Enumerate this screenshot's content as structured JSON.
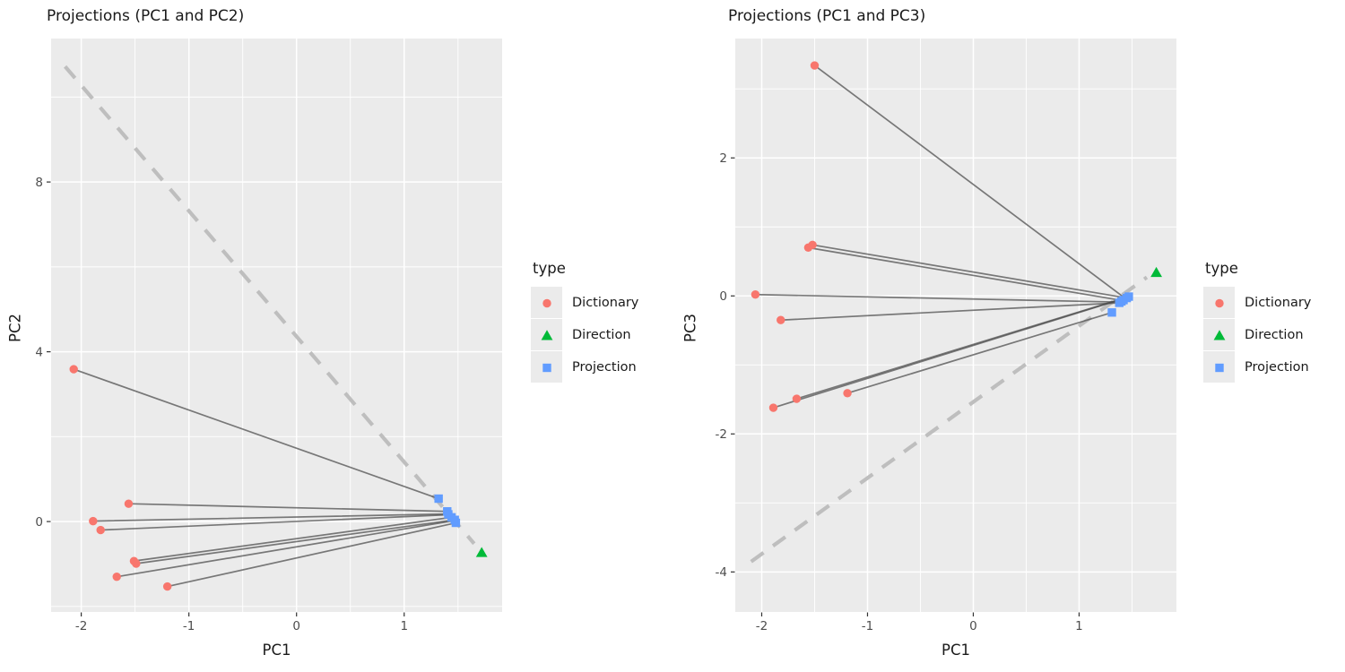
{
  "colors": {
    "dictionary": "#F8766D",
    "direction": "#00BA38",
    "projection": "#619CFF",
    "panel_bg": "#EBEBEB",
    "grid": "#FFFFFF",
    "dashed_line": "#BEBEBE",
    "segment": "#4A4A4A",
    "tick_text": "#4D4D4D",
    "tick_mark": "#333333",
    "title_text": "#1A1A1A"
  },
  "legend": {
    "title": "type",
    "items": [
      {
        "label": "Dictionary",
        "marker": "circle",
        "color": "#F8766D"
      },
      {
        "label": "Direction",
        "marker": "triangle",
        "color": "#00BA38"
      },
      {
        "label": "Projection",
        "marker": "square",
        "color": "#619CFF"
      }
    ]
  },
  "chart_data": [
    {
      "type": "scatter",
      "title": "Projections (PC1 and PC2)",
      "xlabel": "PC1",
      "ylabel": "PC2",
      "xlim": [
        -2.28,
        1.91
      ],
      "ylim": [
        -2.13,
        11.38
      ],
      "xticks": [
        -2,
        -1,
        0,
        1
      ],
      "yticks": [
        0,
        4,
        8
      ],
      "x_minor": [
        -1.5,
        -0.5,
        0.5,
        1.5
      ],
      "y_minor": [
        -2,
        2,
        6,
        10
      ],
      "grid": true,
      "legend_position": "right",
      "direction_axis": {
        "x1": -2.15,
        "y1": 10.72,
        "x2": 1.65,
        "y2": -0.52,
        "style": "dashed"
      },
      "series": [
        {
          "name": "Dictionary",
          "marker": "circle",
          "color": "#F8766D",
          "points": [
            [
              -2.07,
              3.59
            ],
            [
              -1.56,
              0.42
            ],
            [
              -1.89,
              0.01
            ],
            [
              -1.82,
              -0.2
            ],
            [
              -1.51,
              -0.93
            ],
            [
              -1.49,
              -0.99
            ],
            [
              -1.67,
              -1.3
            ],
            [
              -1.2,
              -1.53
            ]
          ]
        },
        {
          "name": "Direction",
          "marker": "triangle",
          "color": "#00BA38",
          "points": [
            [
              1.72,
              -0.73
            ]
          ]
        },
        {
          "name": "Projection",
          "marker": "square",
          "color": "#619CFF",
          "points": [
            [
              1.32,
              0.54
            ],
            [
              1.4,
              0.24
            ],
            [
              1.41,
              0.17
            ],
            [
              1.44,
              0.1
            ],
            [
              1.47,
              0.04
            ],
            [
              1.48,
              -0.03
            ]
          ]
        }
      ],
      "segments": [
        [
          -2.07,
          3.59,
          1.32,
          0.54
        ],
        [
          -1.56,
          0.42,
          1.4,
          0.24
        ],
        [
          -1.89,
          0.01,
          1.41,
          0.18
        ],
        [
          -1.82,
          -0.2,
          1.41,
          0.16
        ],
        [
          -1.51,
          -0.93,
          1.44,
          0.1
        ],
        [
          -1.49,
          -0.99,
          1.47,
          0.04
        ],
        [
          -1.67,
          -1.3,
          1.46,
          0.02
        ],
        [
          -1.2,
          -1.53,
          1.48,
          -0.03
        ]
      ]
    },
    {
      "type": "scatter",
      "title": "Projections (PC1 and PC3)",
      "xlabel": "PC1",
      "ylabel": "PC3",
      "xlim": [
        -2.25,
        1.92
      ],
      "ylim": [
        -4.58,
        3.73
      ],
      "xticks": [
        -2,
        -1,
        0,
        1
      ],
      "yticks": [
        -4,
        -2,
        0,
        2
      ],
      "x_minor": [
        -1.5,
        -0.5,
        0.5,
        1.5
      ],
      "y_minor": [
        -3,
        -1,
        1,
        3
      ],
      "grid": true,
      "legend_position": "right",
      "direction_axis": {
        "x1": -2.1,
        "y1": -3.85,
        "x2": 1.64,
        "y2": 0.27,
        "style": "dashed"
      },
      "series": [
        {
          "name": "Dictionary",
          "marker": "circle",
          "color": "#F8766D",
          "points": [
            [
              -1.5,
              3.34
            ],
            [
              -1.52,
              0.74
            ],
            [
              -1.56,
              0.7
            ],
            [
              -2.06,
              0.02
            ],
            [
              -1.82,
              -0.35
            ],
            [
              -1.89,
              -1.62
            ],
            [
              -1.67,
              -1.49
            ],
            [
              -1.19,
              -1.41
            ]
          ]
        },
        {
          "name": "Direction",
          "marker": "triangle",
          "color": "#00BA38",
          "points": [
            [
              1.73,
              0.34
            ]
          ]
        },
        {
          "name": "Projection",
          "marker": "square",
          "color": "#619CFF",
          "points": [
            [
              1.31,
              -0.24
            ],
            [
              1.38,
              -0.1
            ],
            [
              1.4,
              -0.08
            ],
            [
              1.42,
              -0.06
            ],
            [
              1.45,
              -0.03
            ],
            [
              1.47,
              -0.01
            ]
          ]
        }
      ],
      "segments": [
        [
          -1.5,
          3.34,
          1.44,
          -0.04
        ],
        [
          -1.52,
          0.74,
          1.45,
          -0.03
        ],
        [
          -1.56,
          0.7,
          1.42,
          -0.07
        ],
        [
          -2.06,
          0.02,
          1.4,
          -0.09
        ],
        [
          -1.82,
          -0.35,
          1.38,
          -0.1
        ],
        [
          -1.89,
          -1.62,
          1.46,
          -0.02
        ],
        [
          -1.67,
          -1.49,
          1.47,
          -0.01
        ],
        [
          -1.19,
          -1.41,
          1.31,
          -0.24
        ]
      ]
    }
  ]
}
